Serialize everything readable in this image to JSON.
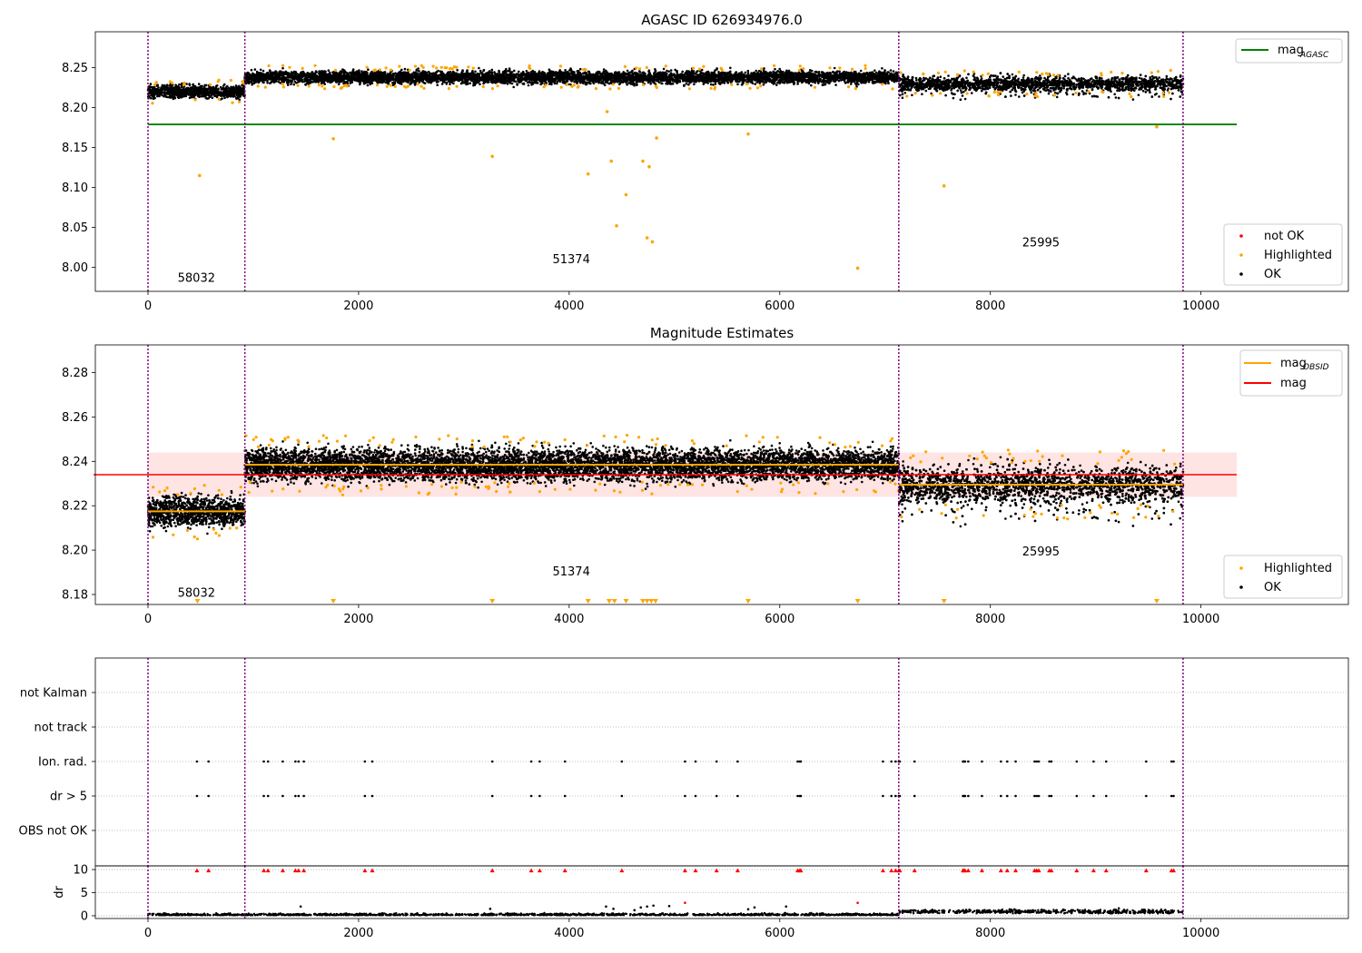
{
  "colors": {
    "ok": "#000000",
    "highlighted": "#ffa500",
    "not_ok": "#ff0000",
    "agasc_line": "#008000",
    "obsid_line": "#ffa500",
    "mag_line": "#ff0000",
    "mag_band": "#ffdddd",
    "obsid_divider": "#800080",
    "grid": "#b0b0b0"
  },
  "chart_data": [
    {
      "type": "scatter",
      "title": "AGASC ID 626934976.0",
      "xlabel": "",
      "ylabel": "",
      "xlim": [
        -500,
        11400
      ],
      "ylim": [
        7.97,
        8.295
      ],
      "xticks": [
        0,
        2000,
        4000,
        6000,
        8000,
        10000
      ],
      "yticks": [
        8.0,
        8.05,
        8.1,
        8.15,
        8.2,
        8.25
      ],
      "ytick_labels": [
        "8.00",
        "8.05",
        "8.10",
        "8.15",
        "8.20",
        "8.25"
      ],
      "obsid_boundaries": [
        0,
        920,
        7130,
        9830
      ],
      "obsid_labels": [
        {
          "text": "58032",
          "x": 460,
          "y": 7.982
        },
        {
          "text": "51374",
          "x": 4020,
          "y": 8.005
        },
        {
          "text": "25995",
          "x": 8480,
          "y": 8.026
        }
      ],
      "segments": [
        {
          "x_range": [
            0,
            920
          ],
          "center": 8.22,
          "spread": 0.007
        },
        {
          "x_range": [
            920,
            7130
          ],
          "center": 8.238,
          "spread": 0.007
        },
        {
          "x_range": [
            7130,
            9830
          ],
          "center": 8.23,
          "spread": 0.008
        }
      ],
      "reference_lines": [
        {
          "name": "mag_AGASC",
          "y": 8.179,
          "x_range": [
            0,
            10340
          ]
        }
      ],
      "highlighted_outliers": [
        {
          "x": 490,
          "y": 8.115
        },
        {
          "x": 1760,
          "y": 8.161
        },
        {
          "x": 3270,
          "y": 8.139
        },
        {
          "x": 4180,
          "y": 8.117
        },
        {
          "x": 4360,
          "y": 8.195
        },
        {
          "x": 4400,
          "y": 8.133
        },
        {
          "x": 4450,
          "y": 8.052
        },
        {
          "x": 4540,
          "y": 8.091
        },
        {
          "x": 4700,
          "y": 8.133
        },
        {
          "x": 4740,
          "y": 8.037
        },
        {
          "x": 4760,
          "y": 8.126
        },
        {
          "x": 4790,
          "y": 8.032
        },
        {
          "x": 4830,
          "y": 8.162
        },
        {
          "x": 5700,
          "y": 8.167
        },
        {
          "x": 6740,
          "y": 7.999
        },
        {
          "x": 7560,
          "y": 8.102
        },
        {
          "x": 9580,
          "y": 8.176
        }
      ],
      "legends": [
        {
          "placement": "top-right",
          "entries": [
            {
              "label": "mag",
              "subscript": "AGASC",
              "marker": "line",
              "color": "#008000"
            }
          ]
        },
        {
          "placement": "lower-right",
          "entries": [
            {
              "label": "not OK",
              "marker": "dot",
              "color": "#ff0000"
            },
            {
              "label": "Highlighted",
              "marker": "dot",
              "color": "#ffa500"
            },
            {
              "label": "OK",
              "marker": "dot",
              "color": "#000000"
            }
          ]
        }
      ]
    },
    {
      "type": "scatter",
      "title": "Magnitude Estimates",
      "xlabel": "",
      "ylabel": "",
      "xlim": [
        -500,
        11400
      ],
      "ylim": [
        8.1755,
        8.2925
      ],
      "xticks": [
        0,
        2000,
        4000,
        6000,
        8000,
        10000
      ],
      "yticks": [
        8.18,
        8.2,
        8.22,
        8.24,
        8.26,
        8.28
      ],
      "ytick_labels": [
        "8.18",
        "8.20",
        "8.22",
        "8.24",
        "8.26",
        "8.28"
      ],
      "obsid_boundaries": [
        0,
        920,
        7130,
        9830
      ],
      "obsid_labels": [
        {
          "text": "58032",
          "x": 460,
          "y": 8.179
        },
        {
          "text": "51374",
          "x": 4020,
          "y": 8.1885
        },
        {
          "text": "25995",
          "x": 8480,
          "y": 8.1975
        }
      ],
      "segments": [
        {
          "x_range": [
            0,
            920
          ],
          "center": 8.2175,
          "spread": 0.006
        },
        {
          "x_range": [
            920,
            7130
          ],
          "center": 8.2385,
          "spread": 0.0065
        },
        {
          "x_range": [
            7130,
            9830
          ],
          "center": 8.2295,
          "spread": 0.0075
        }
      ],
      "mag_OBSID": [
        {
          "x_range": [
            0,
            920
          ],
          "y": 8.2175
        },
        {
          "x_range": [
            920,
            7130
          ],
          "y": 8.2385
        },
        {
          "x_range": [
            7130,
            9830
          ],
          "y": 8.2295
        }
      ],
      "mag": {
        "y": 8.234,
        "band": [
          8.224,
          8.244
        ],
        "x_range": [
          0,
          10340
        ]
      },
      "below_axis_markers_x": [
        470,
        1760,
        3270,
        4180,
        4380,
        4430,
        4540,
        4700,
        4740,
        4780,
        4820,
        5700,
        6740,
        7560,
        9580
      ],
      "legends": [
        {
          "placement": "top-right",
          "entries": [
            {
              "label": "mag",
              "subscript": "OBSID",
              "marker": "line",
              "color": "#ffa500"
            },
            {
              "label": "mag",
              "marker": "line",
              "color": "#ff0000"
            }
          ]
        },
        {
          "placement": "lower-right",
          "entries": [
            {
              "label": "Highlighted",
              "marker": "dot",
              "color": "#ffa500"
            },
            {
              "label": "OK",
              "marker": "dot",
              "color": "#000000"
            }
          ]
        }
      ]
    },
    {
      "type": "scatter",
      "title": "",
      "xlabel": "",
      "ylabel": "",
      "xlim": [
        -500,
        11400
      ],
      "categories": [
        "not Kalman",
        "not track",
        "Ion. rad.",
        "dr > 5",
        "OBS not OK"
      ],
      "obsid_boundaries": [
        0,
        920,
        7130,
        9830
      ],
      "flag_points": {
        "Ion. rad.": [
          465,
          575,
          1100,
          1140,
          1280,
          1400,
          1430,
          1480,
          2060,
          2130,
          3270,
          3640,
          3720,
          3960,
          4500,
          5100,
          5200,
          5400,
          5600,
          6170,
          6190,
          6200,
          6980,
          7060,
          7100,
          7130,
          7140,
          7280,
          7740,
          7750,
          7760,
          7790,
          7920,
          8100,
          8160,
          8240,
          8420,
          8440,
          8460,
          8560,
          8580,
          8820,
          8980,
          9100,
          9480,
          9720,
          9740
        ],
        "dr > 5": [
          465,
          575,
          1100,
          1140,
          1280,
          1400,
          1430,
          1480,
          2060,
          2130,
          3270,
          3640,
          3720,
          3960,
          4500,
          5100,
          5200,
          5400,
          5600,
          6170,
          6190,
          6200,
          6980,
          7060,
          7100,
          7130,
          7140,
          7280,
          7740,
          7750,
          7760,
          7790,
          7920,
          8100,
          8160,
          8240,
          8420,
          8440,
          8460,
          8560,
          8580,
          8820,
          8980,
          9100,
          9480,
          9720,
          9740
        ],
        "not Kalman": [],
        "not track": [],
        "OBS not OK": []
      }
    },
    {
      "type": "scatter",
      "title": "",
      "xlabel": "",
      "ylabel": "dr",
      "xlim": [
        -500,
        11400
      ],
      "ylim": [
        -0.6,
        10.8
      ],
      "yticks": [
        0,
        5,
        10
      ],
      "ytick_labels": [
        "0",
        "5",
        "10"
      ],
      "xticks": [
        0,
        2000,
        4000,
        6000,
        8000,
        10000
      ],
      "obsid_boundaries": [
        0,
        920,
        7130,
        9830
      ],
      "clipped_markers_x": [
        465,
        575,
        1100,
        1140,
        1280,
        1400,
        1430,
        1480,
        2060,
        2130,
        3270,
        3640,
        3720,
        3960,
        4500,
        5100,
        5200,
        5400,
        5600,
        6170,
        6190,
        6200,
        6980,
        7060,
        7100,
        7130,
        7140,
        7280,
        7740,
        7750,
        7760,
        7790,
        7920,
        8100,
        8160,
        8240,
        8420,
        8440,
        8460,
        8560,
        8580,
        8820,
        8980,
        9100,
        9480,
        9720,
        9740
      ],
      "scattered_points": [
        {
          "x": 1450,
          "y": 2.0
        },
        {
          "x": 3250,
          "y": 1.5
        },
        {
          "x": 4350,
          "y": 2.0
        },
        {
          "x": 4420,
          "y": 1.5
        },
        {
          "x": 4620,
          "y": 1.2
        },
        {
          "x": 4680,
          "y": 1.8
        },
        {
          "x": 4740,
          "y": 2.0
        },
        {
          "x": 4800,
          "y": 2.2
        },
        {
          "x": 4950,
          "y": 2.1
        },
        {
          "x": 5100,
          "y": 2.8
        },
        {
          "x": 5700,
          "y": 1.4
        },
        {
          "x": 5760,
          "y": 1.8
        },
        {
          "x": 6060,
          "y": 2.0
        },
        {
          "x": 6740,
          "y": 2.8
        },
        {
          "x": 8200,
          "y": 1.3
        },
        {
          "x": 9220,
          "y": 1.6
        }
      ]
    }
  ]
}
